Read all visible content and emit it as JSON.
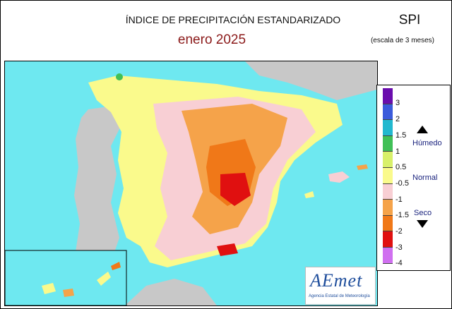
{
  "header": {
    "title": "ÍNDICE DE PRECIPITACIÓN ESTANDARIZADO",
    "period": "enero  2025",
    "index_name": "SPI",
    "scale_note": "(escala de 3 meses)"
  },
  "legend": {
    "classes": [
      {
        "label": "3",
        "color": "#6a0dad"
      },
      {
        "label": "2",
        "color": "#3b5bdb"
      },
      {
        "label": "1.5",
        "color": "#22b8cf"
      },
      {
        "label": "1",
        "color": "#40c057"
      },
      {
        "label": "0.5",
        "color": "#d8f06a"
      },
      {
        "label": "-0.5",
        "color": "#fafa8c"
      },
      {
        "label": "-1",
        "color": "#f8cfd4"
      },
      {
        "label": "-1.5",
        "color": "#f5a34a"
      },
      {
        "label": "-2",
        "color": "#f07818"
      },
      {
        "label": "-3",
        "color": "#e01010"
      },
      {
        "label": "-4",
        "color": "#d070f0"
      }
    ],
    "wet_label": "Húmedo",
    "normal_label": "Normal",
    "dry_label": "Seco"
  },
  "colors": {
    "sea": "#6ee8f0",
    "land_outside": "#c8c8c8",
    "normal": "#fafa8c",
    "slightly_dry": "#f8cfd4",
    "dry": "#f5a34a",
    "very_dry": "#f07818",
    "extreme": "#e01010"
  },
  "logo": {
    "name": "AEmet",
    "subtitle": "Agencia Estatal de Meteorología"
  }
}
